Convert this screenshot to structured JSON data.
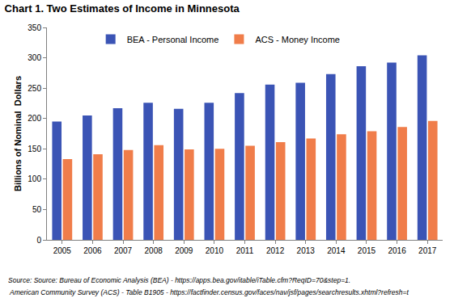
{
  "chart_data": {
    "type": "bar",
    "title": "Chart 1. Two Estimates of Income in Minnesota",
    "y_label": "Billions of Nominal  Dollars",
    "annotations": [
      "Source: Source: Bureau of Economic Analysis (BEA) - https://apps.bea.gov/itable/iTable.cfm?ReqID=70&step=1.",
      " American Community Survey (ACS) - Table B1905 - https://factfinder.census.gov/faces/nav/jsf/pages/searchresults.xhtml?refresh=t"
    ],
    "categories": [
      "2005",
      "2006",
      "2007",
      "2008",
      "2009",
      "2010",
      "2011",
      "2012",
      "2013",
      "2014",
      "2015",
      "2016",
      "2017"
    ],
    "series": [
      {
        "name": "BEA - Personal Income",
        "color": "#3b54b5",
        "values": [
          195,
          205,
          217,
          226,
          216,
          226,
          242,
          256,
          259,
          273,
          286,
          292,
          304
        ]
      },
      {
        "name": "ACS - Money Income",
        "color": "#f07d4a",
        "values": [
          133,
          141,
          148,
          156,
          149,
          150,
          155,
          161,
          167,
          174,
          179,
          186,
          196
        ]
      }
    ],
    "ylim": [
      0,
      350
    ],
    "yticks": [
      0,
      50,
      100,
      150,
      200,
      250,
      300,
      350
    ],
    "grid": false,
    "legend": "top"
  }
}
